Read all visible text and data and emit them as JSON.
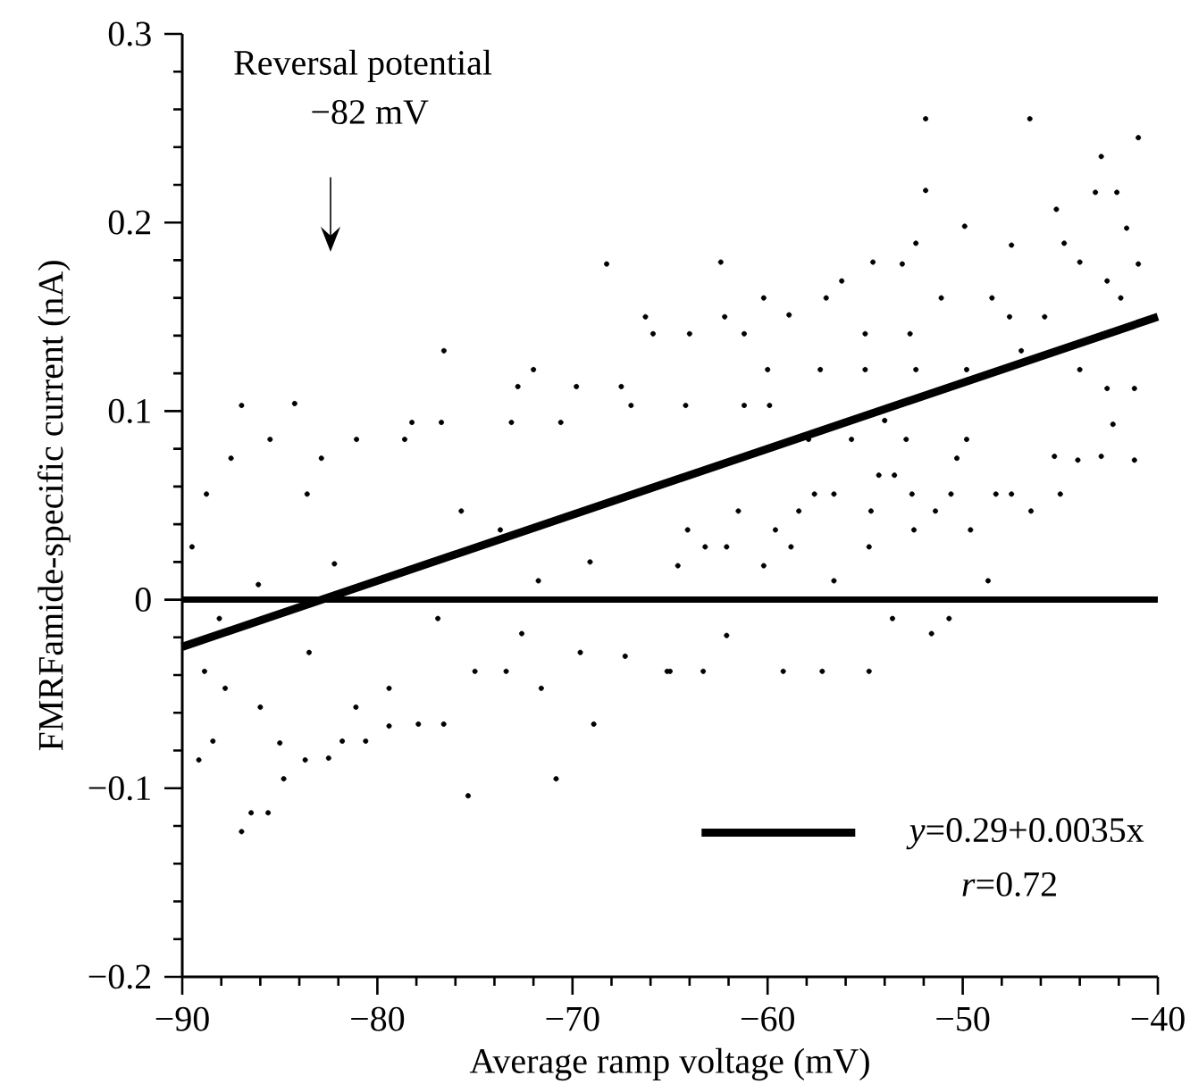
{
  "chart_data": {
    "type": "scatter",
    "xlabel": "Average ramp voltage (mV)",
    "ylabel": "FMRFamide-specific current (nA)",
    "xlim": [
      -90,
      -40
    ],
    "ylim": [
      -0.2,
      0.3
    ],
    "xticks": [
      {
        "value": -90,
        "label": "−90"
      },
      {
        "value": -80,
        "label": "−80"
      },
      {
        "value": -70,
        "label": "−70"
      },
      {
        "value": -60,
        "label": "−60"
      },
      {
        "value": -50,
        "label": "−50"
      },
      {
        "value": -40,
        "label": "−40"
      }
    ],
    "yticks": [
      {
        "value": -0.2,
        "label": "−0.2"
      },
      {
        "value": -0.1,
        "label": "−0.1"
      },
      0,
      0.1,
      0.2,
      0.3
    ],
    "legend": "bottom right",
    "grid": false,
    "ref_lines": [
      {
        "axis": "y",
        "value": 0,
        "color": "#000000"
      }
    ],
    "annotations": [
      "Reversal potential",
      "−82 mV",
      "*r*=0.72"
    ],
    "series": [
      {
        "color": "#000000",
        "marker": "circle",
        "x": [
          -86.96,
          -84.24,
          -76.59,
          -68.25,
          -66.26,
          -65.87,
          -86.96,
          -86.47,
          -85.6,
          -89.15,
          -88.43,
          -75.35,
          -70.84,
          -68.91,
          -87.5,
          -89.5,
          -88.76,
          -85.5,
          -83.6,
          -82.87,
          -81.07,
          -78.23,
          -76.72,
          -78.6,
          -73.13,
          -72.0,
          -72.8,
          -70.6,
          -69.8,
          -67.5,
          -67.0,
          -75.7,
          -73.7,
          -69.1,
          -71.75,
          -82.2,
          -86.1,
          -88.1,
          -88.86,
          -87.8,
          -86.0,
          -85.0,
          -84.8,
          -83.7,
          -82.5,
          -81.8,
          -80.6,
          -79.4,
          -77.9,
          -76.6,
          -81.1,
          -79.4,
          -75.0,
          -73.4,
          -71.6,
          -69.6,
          -67.3,
          -72.6,
          -76.9,
          -83.5,
          -65.15,
          -51.9,
          -46.56,
          -41.0,
          -42.9,
          -51.9,
          -49.9,
          -52.4,
          -45.2,
          -43.2,
          -42.1,
          -41.6,
          -47.5,
          -44.8,
          -62.4,
          -54.6,
          -53.1,
          -56.2,
          -60.2,
          -57.0,
          -62.2,
          -58.9,
          -64.0,
          -61.2,
          -55.0,
          -52.7,
          -51.1,
          -48.5,
          -47.6,
          -45.8,
          -41.9,
          -41.0,
          -42.6,
          -44.0,
          -44.0,
          -42.6,
          -41.2,
          -42.3,
          -42.9,
          -41.2,
          -44.1,
          -45.3,
          -45.0,
          -46.5,
          -47.5,
          -48.3,
          -48.7,
          -49.6,
          -50.6,
          -50.3,
          -51.4,
          -52.5,
          -52.6,
          -53.5,
          -54.3,
          -54.7,
          -56.6,
          -54.8,
          -56.6,
          -57.6,
          -58.4,
          -58.8,
          -59.6,
          -60.2,
          -61.5,
          -62.1,
          -63.2,
          -64.1,
          -64.6,
          -65.0,
          -63.3,
          -62.1,
          -59.2,
          -57.2,
          -54.8,
          -53.6,
          -51.6,
          -50.7,
          -57.9,
          -55.7,
          -52.9,
          -49.8,
          -57.3,
          -61.2,
          -64.2,
          -60.0,
          -55.0,
          -52.4,
          -49.8,
          -47.0,
          -59.9,
          -54.0
        ],
        "values": [
          0.103,
          0.104,
          0.132,
          0.178,
          0.15,
          0.141,
          -0.123,
          -0.113,
          -0.113,
          -0.085,
          -0.075,
          -0.104,
          -0.095,
          -0.066,
          0.075,
          0.028,
          0.056,
          0.085,
          0.056,
          0.075,
          0.085,
          0.094,
          0.094,
          0.085,
          0.094,
          0.122,
          0.113,
          0.094,
          0.113,
          0.113,
          0.103,
          0.047,
          0.037,
          0.02,
          0.01,
          0.019,
          0.008,
          -0.01,
          -0.038,
          -0.047,
          -0.057,
          -0.076,
          -0.095,
          -0.085,
          -0.084,
          -0.075,
          -0.075,
          -0.067,
          -0.066,
          -0.066,
          -0.057,
          -0.047,
          -0.038,
          -0.038,
          -0.047,
          -0.028,
          -0.03,
          -0.018,
          -0.01,
          -0.028,
          -0.038,
          0.255,
          0.255,
          0.245,
          0.235,
          0.217,
          0.198,
          0.189,
          0.207,
          0.216,
          0.216,
          0.197,
          0.188,
          0.189,
          0.179,
          0.179,
          0.178,
          0.169,
          0.16,
          0.16,
          0.15,
          0.151,
          0.141,
          0.141,
          0.141,
          0.141,
          0.16,
          0.16,
          0.15,
          0.15,
          0.16,
          0.178,
          0.169,
          0.179,
          0.122,
          0.112,
          0.112,
          0.093,
          0.076,
          0.074,
          0.074,
          0.076,
          0.056,
          0.047,
          0.056,
          0.056,
          0.01,
          0.037,
          0.056,
          0.075,
          0.047,
          0.037,
          0.056,
          0.066,
          0.066,
          0.047,
          0.01,
          0.028,
          0.056,
          0.056,
          0.047,
          0.028,
          0.037,
          0.018,
          0.047,
          0.028,
          0.028,
          0.037,
          0.018,
          -0.038,
          -0.038,
          -0.019,
          -0.038,
          -0.038,
          -0.038,
          -0.01,
          -0.018,
          -0.01,
          0.085,
          0.085,
          0.085,
          0.085,
          0.122,
          0.103,
          0.103,
          0.122,
          0.122,
          0.122,
          0.122,
          0.132,
          0.103,
          0.095
        ]
      },
      {
        "type": "line",
        "name": "*y*=0.29+0.0035x",
        "marker": "none",
        "color": "#000000",
        "x": [
          -90,
          -40
        ],
        "values": [
          -0.025,
          0.15
        ]
      }
    ]
  }
}
